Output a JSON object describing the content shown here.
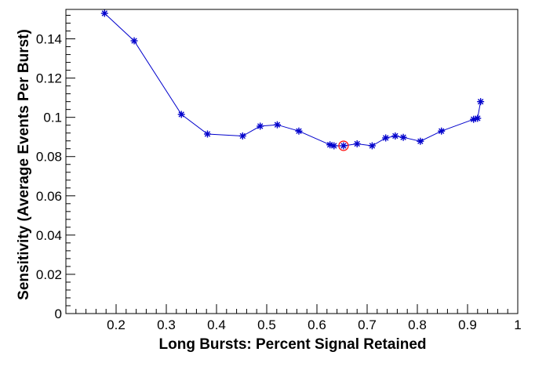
{
  "chart_data": {
    "type": "line",
    "title": "",
    "xlabel": "Long Bursts: Percent Signal Retained",
    "ylabel": "Sensitivity (Average Events Per Burst)",
    "xlim": [
      0.1,
      1.0
    ],
    "ylim": [
      0,
      0.155
    ],
    "x_ticks": [
      0.2,
      0.3,
      0.4,
      0.5,
      0.6,
      0.7,
      0.8,
      0.9,
      1
    ],
    "x_tick_labels": [
      "0.2",
      "0.3",
      "0.4",
      "0.5",
      "0.6",
      "0.7",
      "0.8",
      "0.9",
      "1"
    ],
    "y_ticks": [
      0,
      0.02,
      0.04,
      0.06,
      0.08,
      0.1,
      0.12,
      0.14
    ],
    "y_tick_labels": [
      "0",
      "0.02",
      "0.04",
      "0.06",
      "0.08",
      "0.1",
      "0.12",
      "0.14"
    ],
    "grid": false,
    "legend": "none",
    "line_color": "#0000cc",
    "marker_color": "#0000cc",
    "highlight_color": "#ff0000",
    "series": [
      {
        "x": [
          0.177,
          0.236,
          0.33,
          0.382,
          0.452,
          0.487,
          0.521,
          0.564,
          0.626,
          0.634,
          0.653,
          0.68,
          0.71,
          0.737,
          0.756,
          0.772,
          0.806,
          0.848,
          0.912,
          0.92,
          0.926
        ],
        "y": [
          0.153,
          0.139,
          0.1015,
          0.0915,
          0.0905,
          0.0955,
          0.0962,
          0.093,
          0.086,
          0.0855,
          0.0855,
          0.0865,
          0.0855,
          0.0895,
          0.0905,
          0.0898,
          0.0878,
          0.093,
          0.099,
          0.0995,
          0.108
        ]
      }
    ],
    "highlight_point": {
      "x": 0.653,
      "y": 0.0855
    }
  }
}
